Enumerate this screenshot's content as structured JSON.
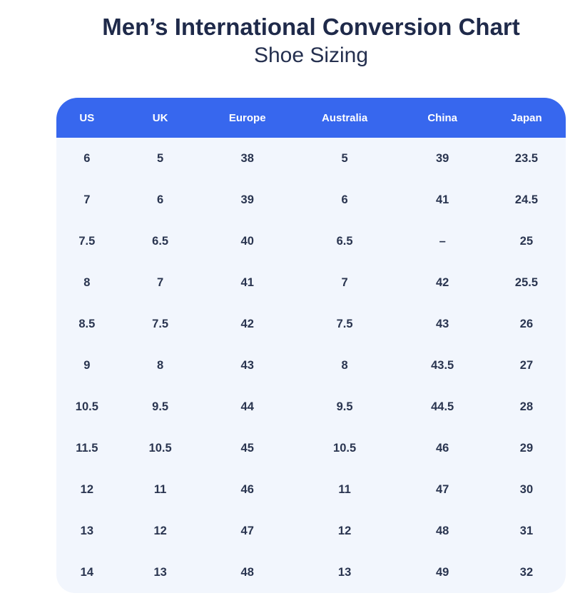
{
  "chart_data": {
    "type": "table",
    "title": "Men’s International Conversion Chart",
    "subtitle": "Shoe Sizing",
    "columns": [
      "US",
      "UK",
      "Europe",
      "Australia",
      "China",
      "Japan"
    ],
    "rows": [
      [
        "6",
        "5",
        "38",
        "5",
        "39",
        "23.5"
      ],
      [
        "7",
        "6",
        "39",
        "6",
        "41",
        "24.5"
      ],
      [
        "7.5",
        "6.5",
        "40",
        "6.5",
        "–",
        "25"
      ],
      [
        "8",
        "7",
        "41",
        "7",
        "42",
        "25.5"
      ],
      [
        "8.5",
        "7.5",
        "42",
        "7.5",
        "43",
        "26"
      ],
      [
        "9",
        "8",
        "43",
        "8",
        "43.5",
        "27"
      ],
      [
        "10.5",
        "9.5",
        "44",
        "9.5",
        "44.5",
        "28"
      ],
      [
        "11.5",
        "10.5",
        "45",
        "10.5",
        "46",
        "29"
      ],
      [
        "12",
        "11",
        "46",
        "11",
        "47",
        "30"
      ],
      [
        "13",
        "12",
        "47",
        "12",
        "48",
        "31"
      ],
      [
        "14",
        "13",
        "48",
        "13",
        "49",
        "32"
      ]
    ]
  },
  "colors": {
    "header_bg": "#3767ee",
    "header_text": "#ffffff",
    "table_body_bg": "#f2f6fd",
    "title_text": "#1f2a4a",
    "cell_text": "#2a3550"
  }
}
